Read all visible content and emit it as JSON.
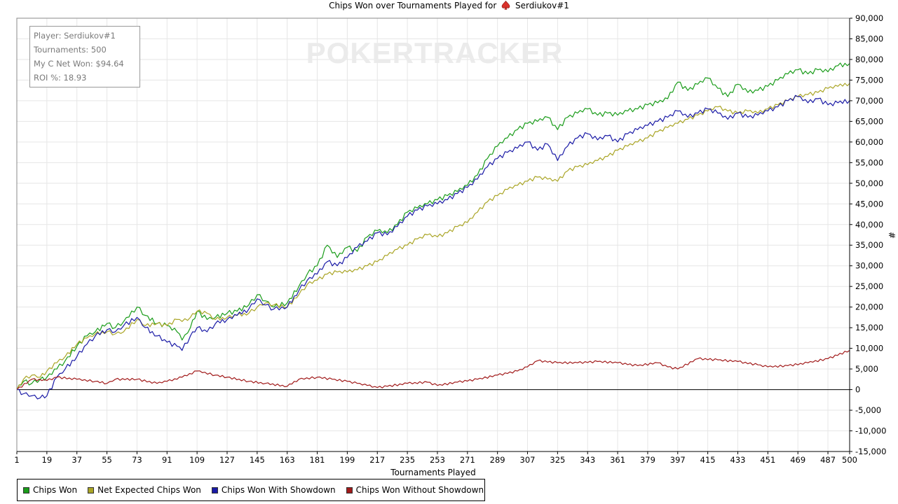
{
  "header": {
    "title_prefix": "Chips Won over Tournaments Played for",
    "player_name": "Serdiukov#1"
  },
  "info_box": {
    "player_line": "Player: Serdiukov#1",
    "tournaments_line": "Tournaments: 500",
    "net_won_line": "My C Net Won: $94.64",
    "roi_line": "ROI %: 18.93"
  },
  "watermark": "POKERTRACKER",
  "colors": {
    "chips_won": "#1a9c1a",
    "net_expected": "#aaa526",
    "with_showdown": "#1a1aa6",
    "without_showdown": "#a11a1a",
    "grid": "#e6e6e6"
  },
  "chart_data": {
    "type": "line",
    "title": "Chips Won over Tournaments Played for Serdiukov#1",
    "xlabel": "Tournaments Played",
    "ylabel": "#",
    "xlim": [
      1,
      500
    ],
    "ylim": [
      -15000,
      90000
    ],
    "x_ticks": [
      1,
      19,
      37,
      55,
      73,
      91,
      109,
      127,
      145,
      163,
      181,
      199,
      217,
      235,
      253,
      271,
      289,
      307,
      325,
      343,
      361,
      379,
      397,
      415,
      433,
      451,
      469,
      487,
      500
    ],
    "y_ticks": [
      -15000,
      -10000,
      -5000,
      0,
      5000,
      10000,
      15000,
      20000,
      25000,
      30000,
      35000,
      40000,
      45000,
      50000,
      55000,
      60000,
      65000,
      70000,
      75000,
      80000,
      85000,
      90000
    ],
    "y_tick_labels": [
      "-15,000",
      "-10,000",
      "-5,000",
      "0",
      "5,000",
      "10,000",
      "15,000",
      "20,000",
      "25,000",
      "30,000",
      "35,000",
      "40,000",
      "45,000",
      "50,000",
      "55,000",
      "60,000",
      "65,000",
      "70,000",
      "75,000",
      "80,000",
      "85,000",
      "90,000"
    ],
    "grid": true,
    "legend_position": "bottom-left",
    "series": [
      {
        "name": "Chips Won",
        "x": [
          1,
          5,
          10,
          15,
          19,
          25,
          30,
          37,
          43,
          48,
          55,
          60,
          65,
          73,
          78,
          85,
          91,
          97,
          100,
          105,
          109,
          115,
          120,
          127,
          133,
          140,
          145,
          150,
          155,
          163,
          170,
          175,
          181,
          187,
          193,
          199,
          205,
          211,
          217,
          223,
          229,
          235,
          241,
          247,
          253,
          259,
          265,
          271,
          277,
          283,
          289,
          295,
          301,
          307,
          313,
          319,
          325,
          331,
          337,
          343,
          349,
          355,
          361,
          367,
          373,
          379,
          385,
          391,
          397,
          403,
          409,
          415,
          421,
          427,
          433,
          439,
          445,
          451,
          457,
          463,
          469,
          475,
          481,
          487,
          493,
          500
        ],
        "y": [
          0,
          2000,
          1500,
          2500,
          3000,
          5000,
          7000,
          10500,
          13000,
          14000,
          16000,
          15000,
          16500,
          20000,
          18000,
          16000,
          15500,
          14000,
          12000,
          15000,
          19000,
          17000,
          17500,
          18500,
          19000,
          20500,
          23000,
          21500,
          20000,
          21000,
          25000,
          28000,
          30000,
          35000,
          32000,
          34500,
          33500,
          37000,
          38500,
          38000,
          40000,
          43000,
          44000,
          45000,
          46000,
          47000,
          48000,
          49500,
          52000,
          56000,
          59000,
          61000,
          63000,
          64500,
          65000,
          66000,
          63000,
          66000,
          67000,
          68000,
          66500,
          67000,
          66500,
          67500,
          68000,
          69000,
          69500,
          70500,
          74500,
          72500,
          74000,
          75500,
          73000,
          71000,
          74000,
          72000,
          72500,
          73500,
          75000,
          76500,
          77500,
          76500,
          77500,
          77000,
          78500,
          79000
        ]
      },
      {
        "name": "Net Expected Chips Won",
        "x": [
          1,
          5,
          10,
          15,
          19,
          25,
          30,
          37,
          43,
          48,
          55,
          60,
          65,
          73,
          78,
          85,
          91,
          97,
          100,
          105,
          109,
          115,
          120,
          127,
          133,
          140,
          145,
          150,
          155,
          163,
          170,
          175,
          181,
          187,
          193,
          199,
          205,
          211,
          217,
          223,
          229,
          235,
          241,
          247,
          253,
          259,
          265,
          271,
          277,
          283,
          289,
          295,
          301,
          307,
          313,
          319,
          325,
          331,
          337,
          343,
          349,
          355,
          361,
          367,
          373,
          379,
          385,
          391,
          397,
          403,
          409,
          415,
          421,
          427,
          433,
          439,
          445,
          451,
          457,
          463,
          469,
          475,
          481,
          487,
          493,
          500
        ],
        "y": [
          0,
          2500,
          3500,
          3000,
          4500,
          6500,
          8000,
          11000,
          12500,
          13500,
          14000,
          13500,
          14000,
          17000,
          15500,
          16000,
          15500,
          17000,
          16500,
          17500,
          19000,
          18500,
          17000,
          17500,
          18000,
          18500,
          20000,
          21000,
          20500,
          20000,
          23000,
          25500,
          26500,
          28000,
          28500,
          28500,
          29000,
          30000,
          31000,
          32500,
          34000,
          35000,
          36500,
          37500,
          37000,
          38000,
          39500,
          40500,
          43000,
          45500,
          47000,
          48500,
          49500,
          50500,
          51500,
          51000,
          50500,
          53000,
          54000,
          54500,
          55500,
          56500,
          58000,
          59000,
          60000,
          61000,
          62500,
          63500,
          64500,
          65500,
          66500,
          67500,
          68500,
          67500,
          67000,
          67500,
          67000,
          68000,
          69000,
          70000,
          71000,
          71500,
          72000,
          73000,
          73500,
          74200
        ]
      },
      {
        "name": "Chips Won With Showdown",
        "x": [
          1,
          5,
          10,
          15,
          19,
          25,
          30,
          37,
          43,
          48,
          55,
          60,
          65,
          73,
          78,
          85,
          91,
          97,
          100,
          105,
          109,
          115,
          120,
          127,
          133,
          140,
          145,
          150,
          155,
          163,
          170,
          175,
          181,
          187,
          193,
          199,
          205,
          211,
          217,
          223,
          229,
          235,
          241,
          247,
          253,
          259,
          265,
          271,
          277,
          283,
          289,
          295,
          301,
          307,
          313,
          319,
          325,
          331,
          337,
          343,
          349,
          355,
          361,
          367,
          373,
          379,
          385,
          391,
          397,
          403,
          409,
          415,
          421,
          427,
          433,
          439,
          445,
          451,
          457,
          463,
          469,
          475,
          481,
          487,
          493,
          500
        ],
        "y": [
          0,
          -1000,
          -1500,
          -2000,
          -1500,
          3000,
          5000,
          8000,
          11000,
          13000,
          14500,
          14000,
          15500,
          17500,
          15000,
          13000,
          11500,
          10500,
          9500,
          13000,
          15000,
          14000,
          16000,
          17000,
          18000,
          19500,
          22000,
          20500,
          19500,
          20000,
          24000,
          26500,
          28000,
          31000,
          30000,
          32000,
          34500,
          36000,
          38000,
          37500,
          39500,
          42000,
          43500,
          44500,
          45000,
          46000,
          47500,
          49000,
          51000,
          54000,
          56000,
          57500,
          58500,
          60000,
          58000,
          59500,
          55500,
          59000,
          61000,
          62000,
          60500,
          61500,
          60000,
          62000,
          63000,
          64000,
          65000,
          66000,
          67500,
          66000,
          67000,
          68000,
          67000,
          65500,
          67000,
          66000,
          66500,
          67500,
          68500,
          70000,
          71000,
          69500,
          70500,
          69000,
          69500,
          70000
        ]
      },
      {
        "name": "Chips Won Without Showdown",
        "x": [
          1,
          10,
          19,
          25,
          37,
          48,
          55,
          60,
          73,
          85,
          91,
          100,
          109,
          120,
          127,
          140,
          150,
          163,
          170,
          181,
          190,
          199,
          205,
          211,
          217,
          223,
          235,
          247,
          253,
          265,
          277,
          289,
          301,
          307,
          313,
          325,
          337,
          349,
          361,
          373,
          385,
          391,
          397,
          409,
          421,
          433,
          445,
          451,
          463,
          475,
          487,
          500
        ],
        "y": [
          0,
          2500,
          2200,
          3000,
          2500,
          2000,
          1500,
          2500,
          2500,
          1500,
          2000,
          3000,
          4500,
          3500,
          3000,
          2000,
          1500,
          800,
          2500,
          3000,
          2500,
          2000,
          1500,
          1000,
          500,
          800,
          1500,
          1800,
          1000,
          1800,
          2500,
          3500,
          4500,
          5500,
          7000,
          6500,
          6500,
          6800,
          6500,
          5800,
          6500,
          5500,
          5000,
          7500,
          7200,
          6800,
          6000,
          5500,
          5800,
          6500,
          7500,
          9500
        ]
      }
    ]
  },
  "legend": {
    "items": [
      "Chips Won",
      "Net Expected Chips Won",
      "Chips Won With Showdown",
      "Chips Won Without Showdown"
    ]
  }
}
